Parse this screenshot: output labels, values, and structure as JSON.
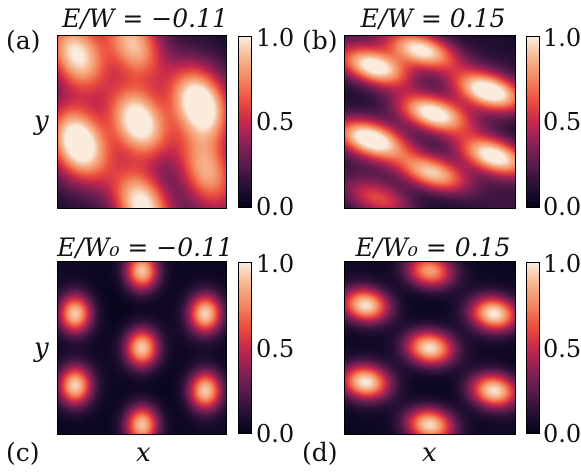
{
  "colors": {
    "colormap": "rocket",
    "stops": [
      "#03051a",
      "#2a1137",
      "#5a1c4b",
      "#8e2155",
      "#c6284d",
      "#ec4e3e",
      "#f4875f",
      "#f6b48e",
      "#faebdd"
    ]
  },
  "chart_data": [
    {
      "type": "heatmap",
      "panel": "(a)",
      "title": "E/W = −0.11",
      "xlabel": "",
      "ylabel": "y",
      "colorbar": {
        "min": 0.0,
        "max": 1.0,
        "ticks": [
          "0.0",
          "0.5",
          "1.0"
        ]
      },
      "peaks": [
        {
          "x": 0.12,
          "y": 0.12,
          "amp": 0.85
        },
        {
          "x": 0.45,
          "y": 0.05,
          "amp": 0.85
        },
        {
          "x": 0.85,
          "y": 0.4,
          "amp": 1.0
        },
        {
          "x": 0.48,
          "y": 0.5,
          "amp": 1.0
        },
        {
          "x": 0.12,
          "y": 0.62,
          "amp": 1.0
        },
        {
          "x": 0.5,
          "y": 0.98,
          "amp": 1.0
        },
        {
          "x": 0.88,
          "y": 0.78,
          "amp": 0.7
        }
      ],
      "peak_shape": {
        "sx": 0.11,
        "sy": 0.16,
        "angle": -0.5
      },
      "background": 0.35
    },
    {
      "type": "heatmap",
      "panel": "(b)",
      "title": "E/W = 0.15",
      "xlabel": "",
      "ylabel": "",
      "colorbar": {
        "min": 0.0,
        "max": 1.0,
        "ticks": [
          "0.0",
          "0.5",
          "1.0"
        ]
      },
      "peaks": [
        {
          "x": 0.18,
          "y": 0.18,
          "amp": 1.0
        },
        {
          "x": 0.45,
          "y": 0.08,
          "amp": 1.0
        },
        {
          "x": 0.85,
          "y": 0.32,
          "amp": 1.0
        },
        {
          "x": 0.52,
          "y": 0.45,
          "amp": 1.0
        },
        {
          "x": 0.15,
          "y": 0.6,
          "amp": 1.0
        },
        {
          "x": 0.88,
          "y": 0.7,
          "amp": 1.0
        },
        {
          "x": 0.52,
          "y": 0.8,
          "amp": 0.9
        },
        {
          "x": 0.2,
          "y": 0.95,
          "amp": 0.5
        }
      ],
      "peak_shape": {
        "sx": 0.15,
        "sy": 0.07,
        "angle": 0.3
      },
      "background": 0.28
    },
    {
      "type": "heatmap",
      "panel": "(c)",
      "title": "E/W₀ = −0.11",
      "xlabel": "x",
      "ylabel": "y",
      "colorbar": {
        "min": 0.0,
        "max": 1.0,
        "ticks": [
          "0.0",
          "0.5",
          "1.0"
        ]
      },
      "peaks": [
        {
          "x": 0.1,
          "y": 0.3,
          "amp": 0.9
        },
        {
          "x": 0.5,
          "y": 0.05,
          "amp": 0.9
        },
        {
          "x": 0.88,
          "y": 0.3,
          "amp": 0.9
        },
        {
          "x": 0.5,
          "y": 0.5,
          "amp": 0.9
        },
        {
          "x": 0.1,
          "y": 0.72,
          "amp": 0.9
        },
        {
          "x": 0.88,
          "y": 0.75,
          "amp": 0.9
        },
        {
          "x": 0.5,
          "y": 0.95,
          "amp": 0.9
        }
      ],
      "peak_shape": {
        "sx": 0.07,
        "sy": 0.08,
        "angle": 0
      },
      "background": 0.08
    },
    {
      "type": "heatmap",
      "panel": "(d)",
      "title": "E/W₀ = 0.15",
      "xlabel": "x",
      "ylabel": "",
      "colorbar": {
        "min": 0.0,
        "max": 1.0,
        "ticks": [
          "0.0",
          "0.5",
          "1.0"
        ]
      },
      "peaks": [
        {
          "x": 0.12,
          "y": 0.25,
          "amp": 0.95
        },
        {
          "x": 0.5,
          "y": 0.05,
          "amp": 0.8
        },
        {
          "x": 0.88,
          "y": 0.3,
          "amp": 0.95
        },
        {
          "x": 0.5,
          "y": 0.5,
          "amp": 0.95
        },
        {
          "x": 0.12,
          "y": 0.7,
          "amp": 0.95
        },
        {
          "x": 0.88,
          "y": 0.75,
          "amp": 0.95
        },
        {
          "x": 0.5,
          "y": 0.95,
          "amp": 0.95
        }
      ],
      "peak_shape": {
        "sx": 0.1,
        "sy": 0.07,
        "angle": 0.15
      },
      "background": 0.08
    }
  ]
}
